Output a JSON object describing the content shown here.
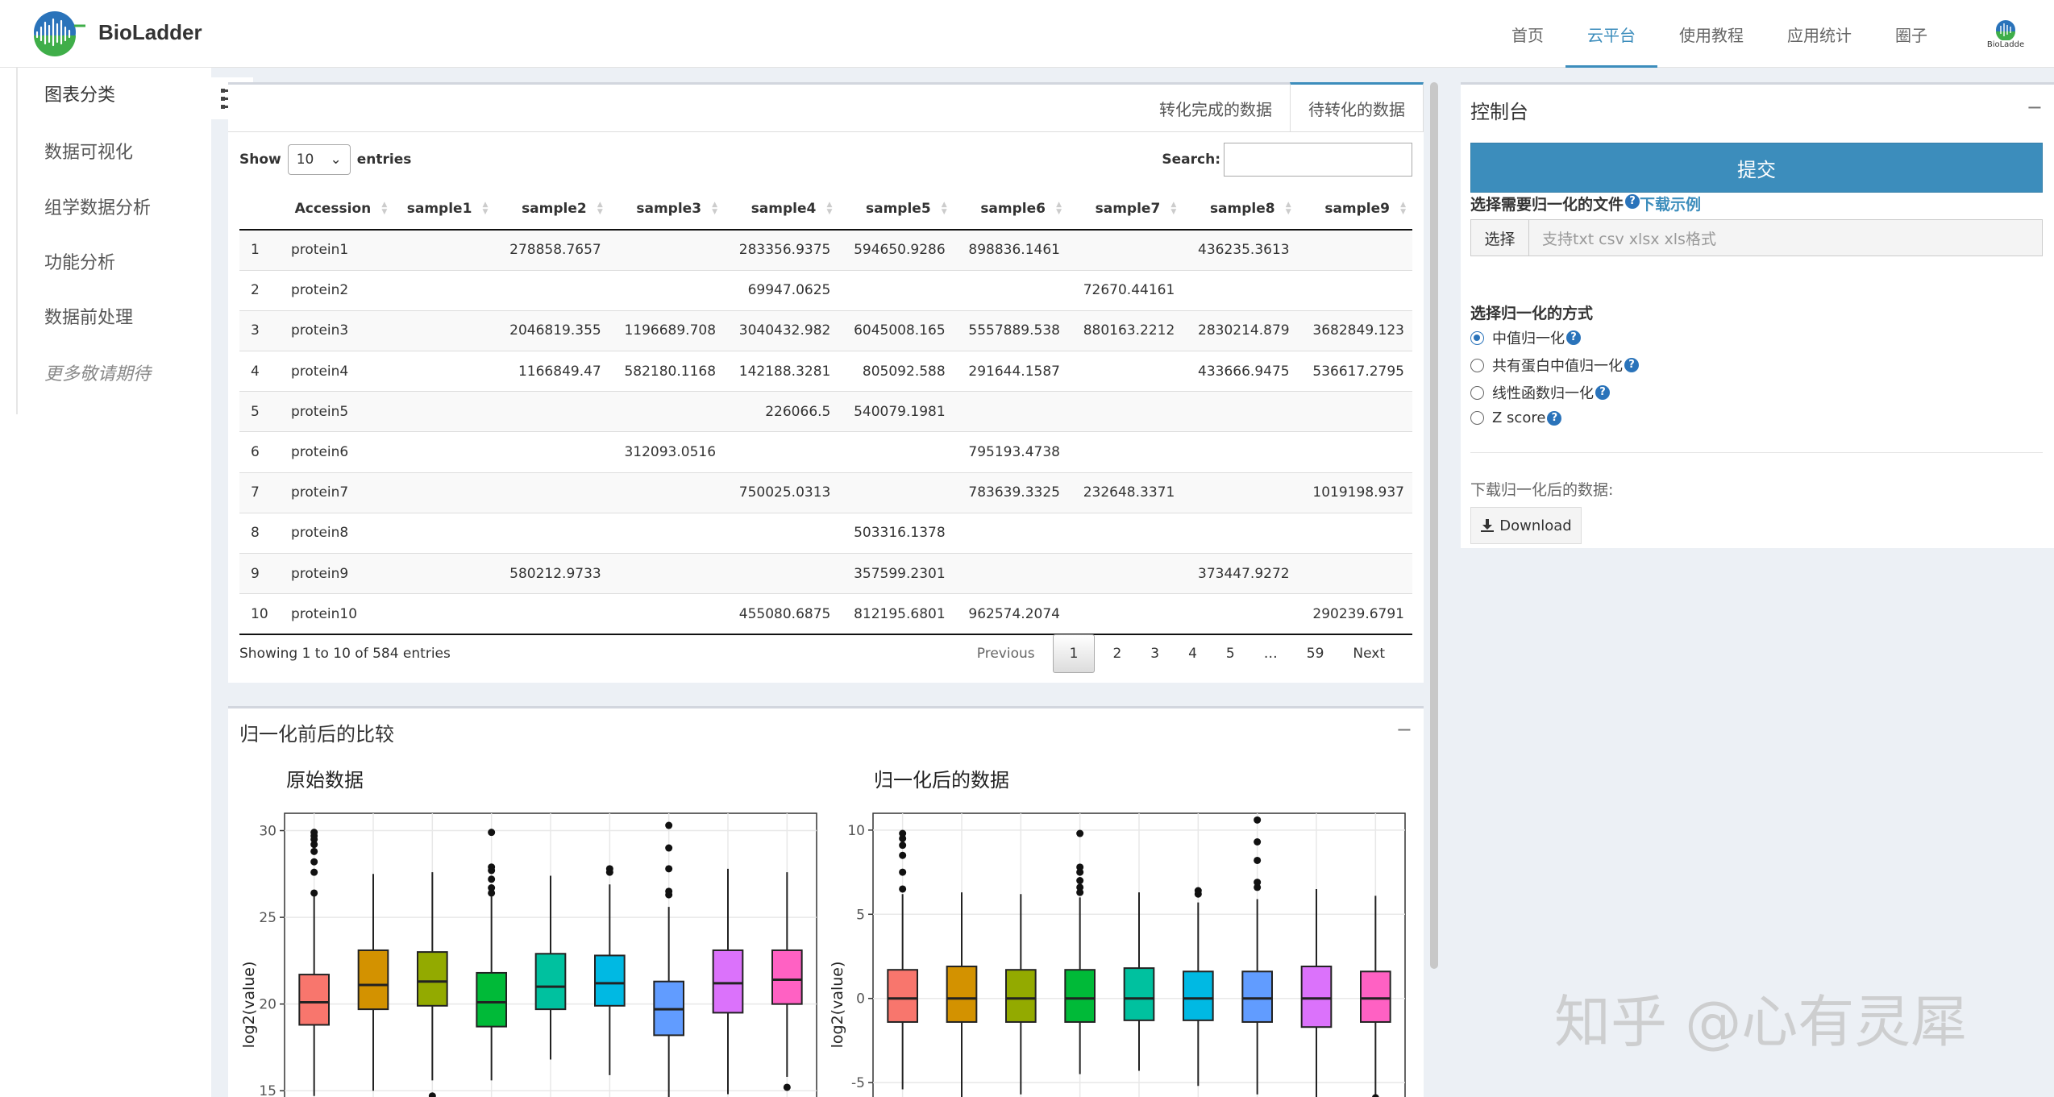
{
  "brand": {
    "name": "BioLadder"
  },
  "nav": {
    "items": [
      {
        "label": "首页"
      },
      {
        "label": "云平台"
      },
      {
        "label": "使用教程"
      },
      {
        "label": "应用统计"
      },
      {
        "label": "圈子"
      }
    ],
    "active": "云平台",
    "user_label": "BioLadde"
  },
  "sidebar": {
    "items": [
      {
        "label": "图表分类"
      },
      {
        "label": "数据可视化"
      },
      {
        "label": "组学数据分析"
      },
      {
        "label": "功能分析"
      },
      {
        "label": "数据前处理"
      },
      {
        "label": "更多敬请期待"
      }
    ]
  },
  "tabs": [
    {
      "label": "转化完成的数据"
    },
    {
      "label": "待转化的数据"
    }
  ],
  "table": {
    "show_label": "Show",
    "entries_label": "entries",
    "page_length": "10",
    "search_label": "Search:",
    "search_value": "",
    "columns": [
      "",
      "Accession",
      "sample1",
      "sample2",
      "sample3",
      "sample4",
      "sample5",
      "sample6",
      "sample7",
      "sample8",
      "sample9"
    ],
    "rows": [
      [
        "1",
        "protein1",
        "",
        "278858.7657",
        "",
        "283356.9375",
        "594650.9286",
        "898836.1461",
        "",
        "436235.3613",
        ""
      ],
      [
        "2",
        "protein2",
        "",
        "",
        "",
        "69947.0625",
        "",
        "",
        "72670.44161",
        "",
        ""
      ],
      [
        "3",
        "protein3",
        "",
        "2046819.355",
        "1196689.708",
        "3040432.982",
        "6045008.165",
        "5557889.538",
        "880163.2212",
        "2830214.879",
        "3682849.123"
      ],
      [
        "4",
        "protein4",
        "",
        "1166849.47",
        "582180.1168",
        "142188.3281",
        "805092.588",
        "291644.1587",
        "",
        "433666.9475",
        "536617.2795"
      ],
      [
        "5",
        "protein5",
        "",
        "",
        "",
        "226066.5",
        "540079.1981",
        "",
        "",
        "",
        ""
      ],
      [
        "6",
        "protein6",
        "",
        "",
        "312093.0516",
        "",
        "",
        "795193.4738",
        "",
        "",
        ""
      ],
      [
        "7",
        "protein7",
        "",
        "",
        "",
        "750025.0313",
        "",
        "783639.3325",
        "232648.3371",
        "",
        "1019198.937"
      ],
      [
        "8",
        "protein8",
        "",
        "",
        "",
        "",
        "503316.1378",
        "",
        "",
        "",
        ""
      ],
      [
        "9",
        "protein9",
        "",
        "580212.9733",
        "",
        "",
        "357599.2301",
        "",
        "",
        "373447.9272",
        ""
      ],
      [
        "10",
        "protein10",
        "",
        "",
        "",
        "455080.6875",
        "812195.6801",
        "962574.2074",
        "",
        "",
        "290239.6791"
      ]
    ],
    "info": "Showing 1 to 10 of 584 entries",
    "pagination": [
      "Previous",
      "1",
      "2",
      "3",
      "4",
      "5",
      "…",
      "59",
      "Next"
    ],
    "current_page": "1"
  },
  "compare": {
    "title": "归一化前后的比较",
    "collapse": "−"
  },
  "chart_data": [
    {
      "type": "box",
      "title": "原始数据",
      "xlabel": "",
      "ylabel": "log2(value)",
      "ylim": [
        14.5,
        31
      ],
      "yticks": [
        15,
        20,
        25,
        30
      ],
      "grid": true,
      "series": [
        {
          "color": "#f8766d",
          "q1": 18.8,
          "median": 20.1,
          "q3": 21.7,
          "whisker_low": 14.7,
          "whisker_high": 26.3,
          "outliers": [
            26.4,
            27.6,
            28.2,
            28.8,
            29.2,
            29.5,
            29.7,
            29.9
          ]
        },
        {
          "color": "#d39200",
          "q1": 19.7,
          "median": 21.1,
          "q3": 23.1,
          "whisker_low": 15.0,
          "whisker_high": 27.5,
          "outliers": []
        },
        {
          "color": "#93aa00",
          "q1": 19.9,
          "median": 21.3,
          "q3": 23.0,
          "whisker_low": 15.6,
          "whisker_high": 27.6,
          "outliers": [
            14.7
          ]
        },
        {
          "color": "#00ba38",
          "q1": 18.7,
          "median": 20.1,
          "q3": 21.8,
          "whisker_low": 15.6,
          "whisker_high": 26.2,
          "outliers": [
            26.4,
            26.7,
            27.2,
            27.7,
            27.9,
            29.9
          ]
        },
        {
          "color": "#00c19f",
          "q1": 19.7,
          "median": 21.0,
          "q3": 22.9,
          "whisker_low": 16.8,
          "whisker_high": 27.4,
          "outliers": []
        },
        {
          "color": "#00b9e3",
          "q1": 19.9,
          "median": 21.2,
          "q3": 22.8,
          "whisker_low": 15.9,
          "whisker_high": 26.9,
          "outliers": [
            27.6,
            27.8
          ]
        },
        {
          "color": "#619cff",
          "q1": 18.2,
          "median": 19.7,
          "q3": 21.3,
          "whisker_low": 14.5,
          "whisker_high": 25.6,
          "outliers": [
            26.3,
            26.5,
            27.8,
            29.0,
            30.3
          ]
        },
        {
          "color": "#db72fb",
          "q1": 19.5,
          "median": 21.2,
          "q3": 23.1,
          "whisker_low": 14.8,
          "whisker_high": 27.8,
          "outliers": []
        },
        {
          "color": "#ff61c3",
          "q1": 20.0,
          "median": 21.4,
          "q3": 23.1,
          "whisker_low": 15.8,
          "whisker_high": 27.6,
          "outliers": [
            15.2
          ]
        }
      ]
    },
    {
      "type": "box",
      "title": "归一化后的数据",
      "xlabel": "",
      "ylabel": "log2(value)",
      "ylim": [
        -6,
        11
      ],
      "yticks": [
        -5,
        0,
        5,
        10
      ],
      "grid": true,
      "series": [
        {
          "color": "#f8766d",
          "q1": -1.4,
          "median": 0.0,
          "q3": 1.7,
          "whisker_low": -5.4,
          "whisker_high": 6.2,
          "outliers": [
            6.5,
            7.5,
            8.5,
            9.1,
            9.5,
            9.8
          ]
        },
        {
          "color": "#d39200",
          "q1": -1.4,
          "median": 0.0,
          "q3": 1.9,
          "whisker_low": -6.0,
          "whisker_high": 6.3,
          "outliers": []
        },
        {
          "color": "#93aa00",
          "q1": -1.4,
          "median": 0.0,
          "q3": 1.7,
          "whisker_low": -5.7,
          "whisker_high": 6.2,
          "outliers": []
        },
        {
          "color": "#00ba38",
          "q1": -1.4,
          "median": 0.0,
          "q3": 1.7,
          "whisker_low": -4.5,
          "whisker_high": 6.0,
          "outliers": [
            6.3,
            6.6,
            7.0,
            7.5,
            7.8,
            9.8
          ]
        },
        {
          "color": "#00c19f",
          "q1": -1.3,
          "median": 0.0,
          "q3": 1.8,
          "whisker_low": -4.3,
          "whisker_high": 6.3,
          "outliers": []
        },
        {
          "color": "#00b9e3",
          "q1": -1.3,
          "median": 0.0,
          "q3": 1.6,
          "whisker_low": -5.2,
          "whisker_high": 5.7,
          "outliers": [
            6.2,
            6.4
          ]
        },
        {
          "color": "#619cff",
          "q1": -1.4,
          "median": 0.0,
          "q3": 1.6,
          "whisker_low": -5.7,
          "whisker_high": 5.9,
          "outliers": [
            6.6,
            6.9,
            8.2,
            9.3,
            10.6
          ]
        },
        {
          "color": "#db72fb",
          "q1": -1.7,
          "median": 0.0,
          "q3": 1.9,
          "whisker_low": -6.0,
          "whisker_high": 6.5,
          "outliers": []
        },
        {
          "color": "#ff61c3",
          "q1": -1.4,
          "median": 0.0,
          "q3": 1.6,
          "whisker_low": -5.7,
          "whisker_high": 6.1,
          "outliers": [
            -5.9
          ]
        }
      ]
    }
  ],
  "console": {
    "title": "控制台",
    "collapse": "−",
    "submit": "提交",
    "file_label": "选择需要归一化的文件",
    "example_link": "下载示例",
    "file_button": "选择",
    "file_placeholder": "支持txt csv xlsx xls格式",
    "method_label": "选择归一化的方式",
    "methods": [
      {
        "label": "中值归一化",
        "selected": true
      },
      {
        "label": "共有蛋白中值归一化",
        "selected": false
      },
      {
        "label": "线性函数归一化",
        "selected": false
      },
      {
        "label": "Z score",
        "selected": false
      }
    ],
    "download_label": "下载归一化后的数据:",
    "download_button": "Download"
  },
  "watermark": "知乎 @心有灵犀",
  "colors": {
    "accent": "#3c8dbc",
    "help": "#2a73ba"
  }
}
